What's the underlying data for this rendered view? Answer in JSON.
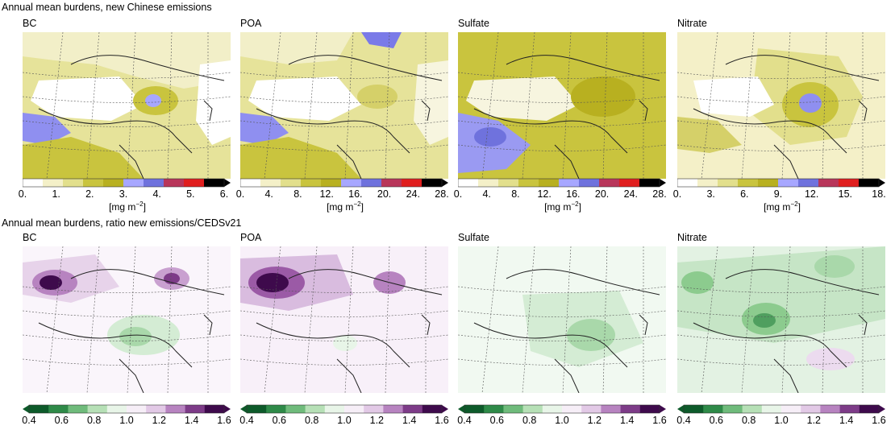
{
  "row1": {
    "title": "Annual mean burdens, new Chinese emissions",
    "unit_text": "[mg m",
    "unit_exp": "−2",
    "unit_close": "]",
    "panels": [
      {
        "title": "BC",
        "ticks": [
          "0.",
          "1.",
          "2.",
          "3.",
          "4.",
          "5.",
          "6."
        ]
      },
      {
        "title": "POA",
        "ticks": [
          "0.",
          "4.",
          "8.",
          "12.",
          "16.",
          "20.",
          "24.",
          "28."
        ]
      },
      {
        "title": "Sulfate",
        "ticks": [
          "0.",
          "4.",
          "8.",
          "12.",
          "16.",
          "20.",
          "24.",
          "28."
        ]
      },
      {
        "title": "Nitrate",
        "ticks": [
          "0.",
          "3.",
          "6.",
          "9.",
          "12.",
          "15.",
          "18."
        ]
      }
    ]
  },
  "row2": {
    "title": "Annual mean burdens, ratio new emissions/CEDSv21",
    "panels": [
      {
        "title": "BC",
        "ticks": [
          "0.4",
          "0.6",
          "0.8",
          "1.0",
          "1.2",
          "1.4",
          "1.6"
        ]
      },
      {
        "title": "POA",
        "ticks": [
          "0.4",
          "0.6",
          "0.8",
          "1.0",
          "1.2",
          "1.4",
          "1.6"
        ]
      },
      {
        "title": "Sulfate",
        "ticks": [
          "0.4",
          "0.6",
          "0.8",
          "1.0",
          "1.2",
          "1.4",
          "1.6"
        ]
      },
      {
        "title": "Nitrate",
        "ticks": [
          "0.4",
          "0.6",
          "0.8",
          "1.0",
          "1.2",
          "1.4",
          "1.6"
        ]
      }
    ]
  },
  "colors": {
    "burden_scale": [
      "#ffffff",
      "#f4f0c8",
      "#e2df8c",
      "#c9c43e",
      "#b8b020",
      "#a7a7ff",
      "#6f72dd",
      "#b8365a",
      "#e01e1e",
      "#000000"
    ],
    "ratio_scale": [
      "#0d5a2a",
      "#2e8a48",
      "#6fbb7b",
      "#b6e0b6",
      "#e8f5e8",
      "#f6eef7",
      "#e2c9e6",
      "#b783c0",
      "#7d3b88",
      "#3e0a4c"
    ]
  }
}
